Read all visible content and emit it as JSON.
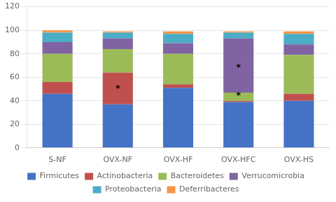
{
  "chart_data": {
    "type": "bar",
    "stacked": true,
    "categories": [
      "S-NF",
      "OVX-NF",
      "OVX-HF",
      "OVX-HFC",
      "OVX-HS"
    ],
    "series": [
      {
        "name": "Firmicutes",
        "color": "#4472C4",
        "values": [
          46,
          37,
          51,
          39,
          40
        ]
      },
      {
        "name": "Actinobacteria",
        "color": "#C0504D",
        "values": [
          10,
          27,
          3,
          1,
          6
        ]
      },
      {
        "name": "Bacteroidetes",
        "color": "#9BBB59",
        "values": [
          24,
          20,
          26,
          7,
          33
        ]
      },
      {
        "name": "Verrucomicrobia",
        "color": "#8064A2",
        "values": [
          10,
          9,
          9,
          46,
          9
        ]
      },
      {
        "name": "Proteobacteria",
        "color": "#4BACC6",
        "values": [
          8,
          5,
          8,
          5,
          9
        ]
      },
      {
        "name": "Deferribacteres",
        "color": "#F79646",
        "values": [
          2,
          1,
          2,
          1,
          2
        ]
      }
    ],
    "annotations": [
      {
        "x": "OVX-NF",
        "y": 50,
        "text": "*"
      },
      {
        "x": "OVX-HFC",
        "y": 68,
        "text": "*"
      },
      {
        "x": "OVX-HFC",
        "y": 44,
        "text": "*"
      }
    ],
    "ylim": [
      0,
      120
    ],
    "yticks": [
      0,
      20,
      40,
      60,
      80,
      100,
      120
    ],
    "grid": true,
    "legend": "bottom"
  }
}
